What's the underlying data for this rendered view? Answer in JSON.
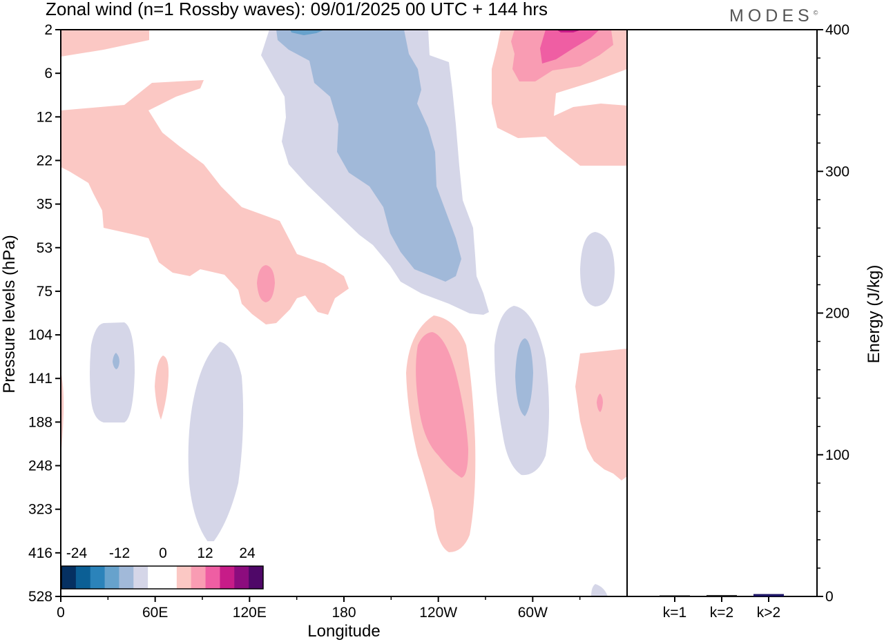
{
  "header": {
    "title": "Zonal wind (n=1 Rossby waves):  09/01/2025  00 UTC  + 144 hrs",
    "brand": "MODES",
    "brand_mark": "©"
  },
  "chart_data": [
    {
      "type": "heatmap",
      "title": "Zonal wind (n=1 Rossby waves):  09/01/2025  00 UTC  + 144 hrs",
      "xlabel": "Longitude",
      "ylabel": "Pressure levels (hPa)",
      "x_ticks": [
        "0",
        "60E",
        "120E",
        "180",
        "120W",
        "60W"
      ],
      "x_tick_values": [
        0,
        60,
        120,
        180,
        240,
        300
      ],
      "xlim": [
        0,
        360
      ],
      "y_ticks": [
        "2",
        "6",
        "12",
        "22",
        "35",
        "53",
        "75",
        "104",
        "141",
        "188",
        "248",
        "323",
        "416",
        "528"
      ],
      "y_scale": "pressure levels, top 2 hPa to bottom 528 hPa",
      "colorbar": {
        "labels": [
          "-24",
          "-12",
          "0",
          "12",
          "24"
        ],
        "colors": [
          "#053061",
          "#0b5f95",
          "#2b83ba",
          "#67a2cc",
          "#a1b9d9",
          "#d5d6e8",
          "#ffffff",
          "#ffffff",
          "#fbc8c4",
          "#f99cb3",
          "#ef5ea3",
          "#c71c88",
          "#8c0c7e",
          "#4f0868"
        ],
        "placement": "bottom-left"
      },
      "regions": [
        {
          "sign": "positive",
          "level": 12,
          "center": [
            60,
            22
          ],
          "note": "upper-level positive band from 0 to about 130E"
        },
        {
          "sign": "positive",
          "level": 16,
          "center": [
            125,
            75
          ]
        },
        {
          "sign": "negative",
          "level": -12,
          "center": [
            200,
            22
          ],
          "note": "tilted negative band 150E to 120W"
        },
        {
          "sign": "negative",
          "level": -16,
          "center": [
            150,
            2
          ]
        },
        {
          "sign": "positive",
          "level": 20,
          "center": [
            320,
            2
          ]
        },
        {
          "sign": "positive",
          "level": 12,
          "center": [
            335,
            12
          ]
        },
        {
          "sign": "negative",
          "level": -8,
          "center": [
            345,
            53
          ]
        },
        {
          "sign": "negative",
          "level": -8,
          "center": [
            33,
            141
          ]
        },
        {
          "sign": "positive",
          "level": 8,
          "center": [
            64,
            141
          ]
        },
        {
          "sign": "negative",
          "level": -8,
          "center": [
            96,
            248
          ]
        },
        {
          "sign": "positive",
          "level": 16,
          "center": [
            240,
            188
          ]
        },
        {
          "sign": "negative",
          "level": -12,
          "center": [
            297,
            141
          ]
        },
        {
          "sign": "positive",
          "level": 12,
          "center": [
            344,
            188
          ]
        }
      ]
    },
    {
      "type": "bar",
      "categories": [
        "k=1",
        "k=2",
        "k>2"
      ],
      "values": [
        0.3,
        0.5,
        1.2
      ],
      "ylabel": "Energy (J/kg)",
      "ylim": [
        0,
        400
      ],
      "y_ticks": [
        0,
        100,
        200,
        300,
        400
      ],
      "colors": [
        "#222222",
        "#222222",
        "#1b1464"
      ]
    }
  ]
}
